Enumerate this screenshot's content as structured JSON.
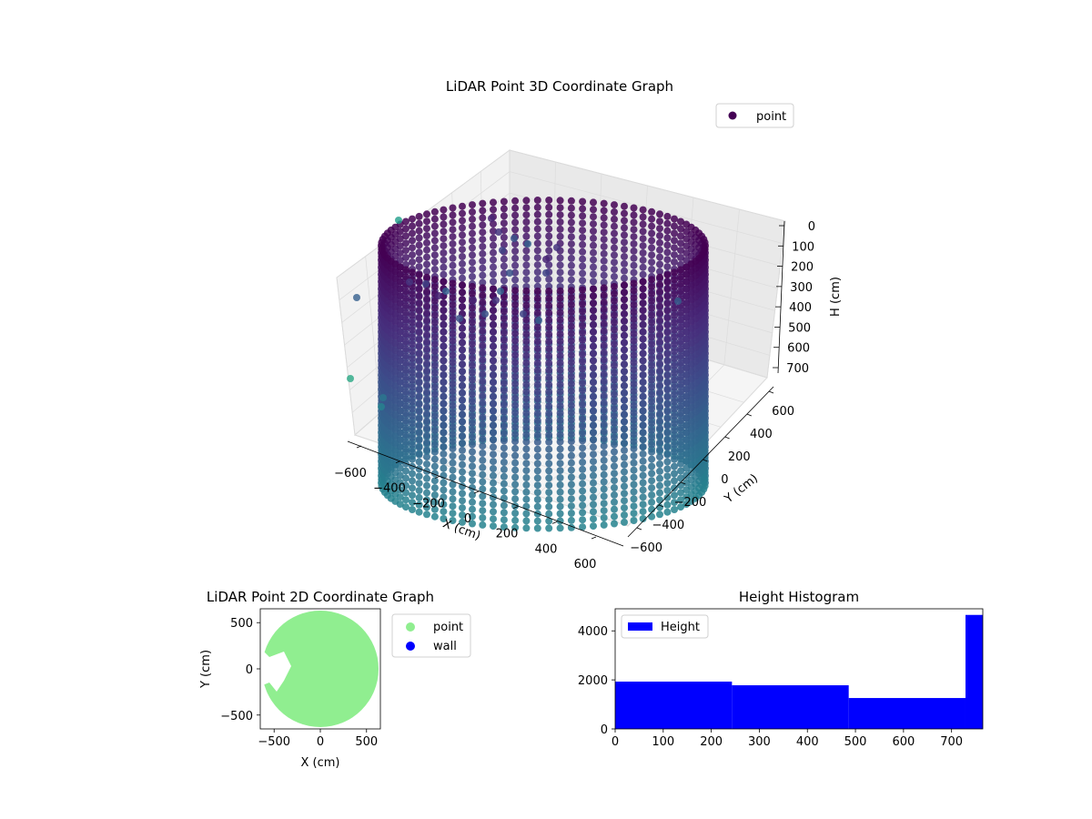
{
  "chart_data": [
    {
      "type": "scatter",
      "projection": "3d",
      "title": "LiDAR Point 3D Coordinate Graph",
      "xlabel": "X (cm)",
      "ylabel": "Y (cm)",
      "zlabel": "H (cm)",
      "xticks": [
        "−600",
        "−400",
        "−200",
        "0",
        "200",
        "400",
        "600"
      ],
      "yticks": [
        "−600",
        "−400",
        "−200",
        "0",
        "200",
        "400",
        "600"
      ],
      "zticks": [
        "0",
        "100",
        "200",
        "300",
        "400",
        "500",
        "600",
        "700"
      ],
      "xlim": [
        -650,
        650
      ],
      "ylim": [
        -650,
        650
      ],
      "zlim": [
        0,
        760
      ],
      "z_axis_inverted": true,
      "colormap": "viridis",
      "legend": {
        "entries": [
          "point"
        ],
        "location": "upper-right"
      },
      "description_shape": "cylindrical wall of points, radius about 600 cm, heights 0 to 730 cm",
      "series": [
        {
          "name": "point",
          "color": "#440154",
          "ring": {
            "radius": 600,
            "h_min": 0,
            "h_max": 730
          }
        }
      ],
      "outliers": [
        {
          "x": -600,
          "y": -300,
          "h": 300
        },
        {
          "x": -630,
          "y": -100,
          "h": 700
        },
        {
          "x": 600,
          "y": 500,
          "h": 200
        }
      ],
      "grid": true
    },
    {
      "type": "scatter",
      "title": "LiDAR Point 2D Coordinate Graph",
      "xlabel": "X (cm)",
      "ylabel": "Y (cm)",
      "xticks": [
        -500,
        0,
        500
      ],
      "yticks": [
        -500,
        0,
        500
      ],
      "xlim": [
        -650,
        650
      ],
      "ylim": [
        -650,
        650
      ],
      "legend": {
        "entries": [
          "point",
          "wall"
        ],
        "location": "outside-right"
      },
      "series": [
        {
          "name": "point",
          "color": "#90ee90",
          "shape": "filled disk radius 620 with notch near (-450,-150)"
        },
        {
          "name": "wall",
          "color": "#0000ff",
          "values": []
        }
      ]
    },
    {
      "type": "bar",
      "title": "Height Histogram",
      "legend": {
        "entries": [
          "Height"
        ],
        "location": "upper-left"
      },
      "xticks": [
        0,
        100,
        200,
        300,
        400,
        500,
        600,
        700
      ],
      "yticks": [
        0,
        2000,
        4000
      ],
      "xlim": [
        0,
        765
      ],
      "ylim": [
        0,
        4900
      ],
      "series": [
        {
          "name": "Height",
          "color": "#0000ff",
          "bins": [
            {
              "start": 0,
              "end": 243,
              "value": 1930
            },
            {
              "start": 243,
              "end": 486,
              "value": 1780
            },
            {
              "start": 486,
              "end": 729,
              "value": 1260
            },
            {
              "start": 729,
              "end": 765,
              "value": 4650
            }
          ]
        }
      ]
    }
  ]
}
